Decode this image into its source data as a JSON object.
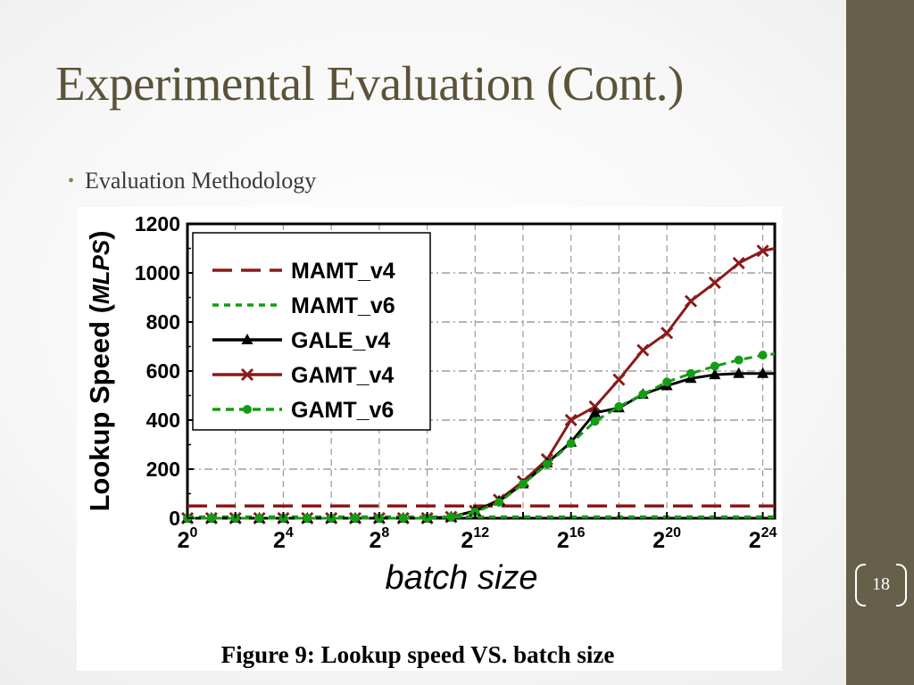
{
  "slide": {
    "title": "Experimental Evaluation (Cont.)",
    "bullet": "Evaluation Methodology",
    "page_number": "18",
    "colors": {
      "title": "#5b5339",
      "sidebar": "#665f49"
    }
  },
  "chart_data": {
    "type": "line",
    "title": "",
    "caption": "Figure 9:  Lookup speed VS. batch size",
    "xlabel": "batch size",
    "ylabel_main": "Lookup Speed (",
    "ylabel_unit": "MLPS",
    "ylabel_close": ")",
    "x_scale": "log2",
    "xlim_exponent": [
      0,
      24.5
    ],
    "ylim": [
      0,
      1200
    ],
    "yticks": [
      0,
      200,
      400,
      600,
      800,
      1000,
      1200
    ],
    "xtick_labels": [
      {
        "base": "2",
        "exp": "0",
        "value": 0
      },
      {
        "base": "2",
        "exp": "4",
        "value": 4
      },
      {
        "base": "2",
        "exp": "8",
        "value": 8
      },
      {
        "base": "2",
        "exp": "12",
        "value": 12
      },
      {
        "base": "2",
        "exp": "16",
        "value": 16
      },
      {
        "base": "2",
        "exp": "20",
        "value": 20
      },
      {
        "base": "2",
        "exp": "24",
        "value": 24
      }
    ],
    "grid": true,
    "legend_position": "top-left",
    "series": [
      {
        "name": "MAMT_v4",
        "color": "#8b1a1a",
        "style": "dashed",
        "marker": "none",
        "x_exponent": [
          0,
          24.5
        ],
        "values": [
          50,
          50
        ]
      },
      {
        "name": "MAMT_v6",
        "color": "#159b15",
        "style": "dotted",
        "marker": "none",
        "x_exponent": [
          0,
          24.5
        ],
        "values": [
          5,
          5
        ]
      },
      {
        "name": "GALE_v4",
        "color": "#000000",
        "style": "solid",
        "marker": "triangle",
        "x_exponent": [
          0,
          1,
          2,
          3,
          4,
          5,
          6,
          7,
          8,
          9,
          10,
          11,
          12,
          13,
          14,
          15,
          16,
          17,
          18,
          19,
          20,
          21,
          22,
          23,
          24,
          24.5
        ],
        "values": [
          0,
          0,
          0,
          0,
          0,
          0,
          0,
          0,
          0,
          0,
          0,
          5,
          30,
          70,
          140,
          225,
          310,
          430,
          450,
          505,
          540,
          570,
          585,
          590,
          590,
          590
        ]
      },
      {
        "name": "GAMT_v4",
        "color": "#8b1a1a",
        "style": "solid",
        "marker": "x",
        "x_exponent": [
          0,
          1,
          2,
          3,
          4,
          5,
          6,
          7,
          8,
          9,
          10,
          11,
          12,
          13,
          14,
          15,
          16,
          17,
          18,
          19,
          20,
          21,
          22,
          23,
          24,
          24.5
        ],
        "values": [
          0,
          0,
          0,
          0,
          0,
          0,
          0,
          0,
          0,
          0,
          0,
          5,
          30,
          75,
          150,
          240,
          400,
          455,
          565,
          685,
          755,
          885,
          960,
          1040,
          1090,
          1100
        ]
      },
      {
        "name": "GAMT_v6",
        "color": "#159b15",
        "style": "dashed",
        "marker": "circle",
        "x_exponent": [
          0,
          1,
          2,
          3,
          4,
          5,
          6,
          7,
          8,
          9,
          10,
          11,
          12,
          13,
          14,
          15,
          16,
          17,
          18,
          19,
          20,
          21,
          22,
          23,
          24,
          24.5
        ],
        "values": [
          0,
          0,
          0,
          0,
          0,
          0,
          0,
          0,
          0,
          0,
          0,
          5,
          25,
          65,
          140,
          220,
          305,
          395,
          455,
          505,
          555,
          590,
          620,
          645,
          665,
          670
        ]
      }
    ]
  }
}
